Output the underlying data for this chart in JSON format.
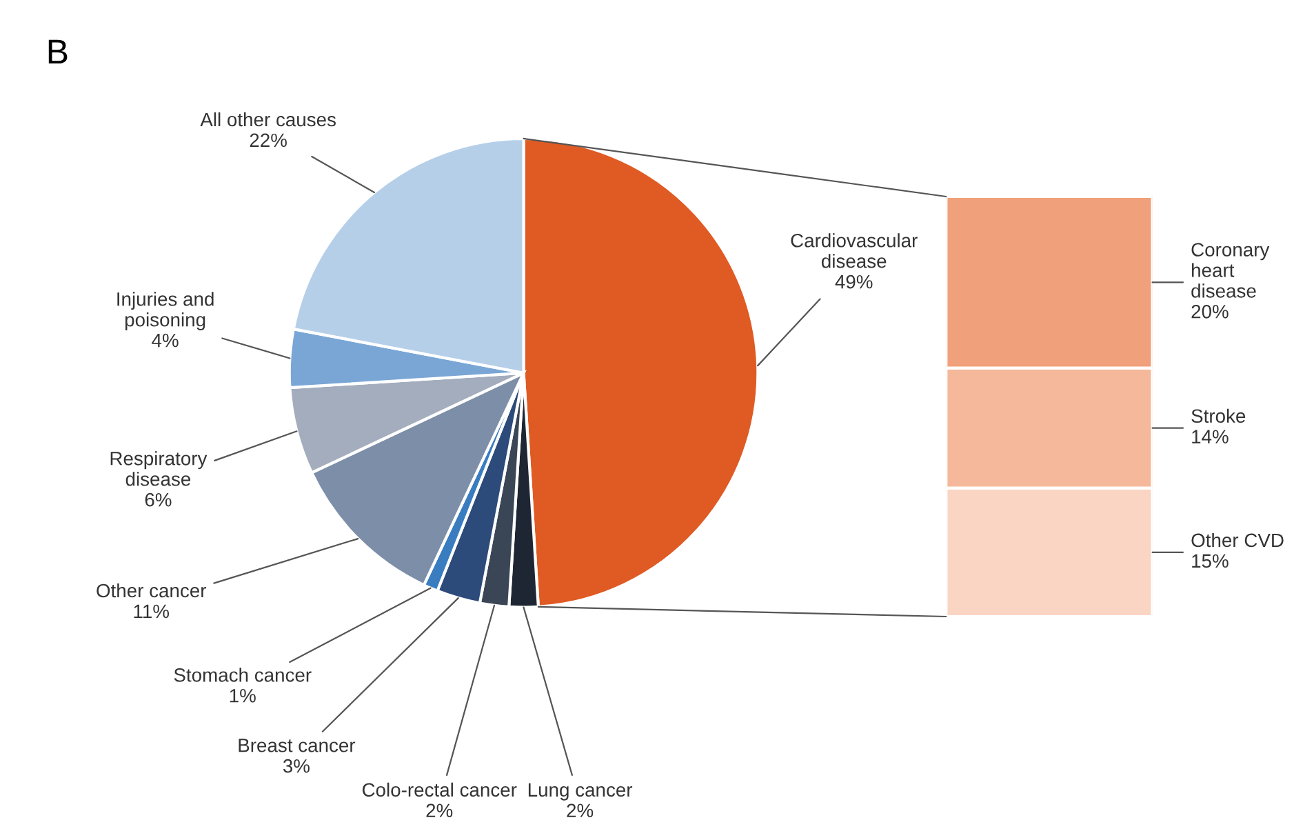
{
  "chart_data": [
    {
      "type": "pie",
      "title": "B",
      "categories": [
        "Cardiovascular\ndisease",
        "Lung cancer",
        "Colo-rectal cancer",
        "Breast cancer",
        "Stomach cancer",
        "Other cancer",
        "Respiratory\ndisease",
        "Injuries and\npoisoning",
        "All other causes"
      ],
      "values": [
        49,
        2,
        2,
        3,
        1,
        11,
        6,
        4,
        22
      ],
      "value_labels": [
        "49%",
        "2%",
        "2%",
        "3%",
        "1%",
        "11%",
        "6%",
        "4%",
        "22%"
      ],
      "colors": [
        "#e05a24",
        "#1f2633",
        "#3a4556",
        "#2c4a7a",
        "#3a7cc0",
        "#7d8ea8",
        "#a3adbd",
        "#7aa6d6",
        "#b6cfe9"
      ]
    },
    {
      "type": "bar",
      "stacked": true,
      "categories": [
        null
      ],
      "series": [
        {
          "name": "Other CVD",
          "color": "#fad5c3",
          "values": [
            15
          ],
          "value_labels": [
            "15%"
          ]
        },
        {
          "name": "Stroke",
          "color": "#f5b89a",
          "values": [
            14
          ],
          "value_labels": [
            "14%"
          ]
        },
        {
          "name": "Coronary\nheart\ndisease",
          "color": "#f0a07a",
          "values": [
            20
          ],
          "value_labels": [
            "20%"
          ]
        }
      ]
    }
  ]
}
